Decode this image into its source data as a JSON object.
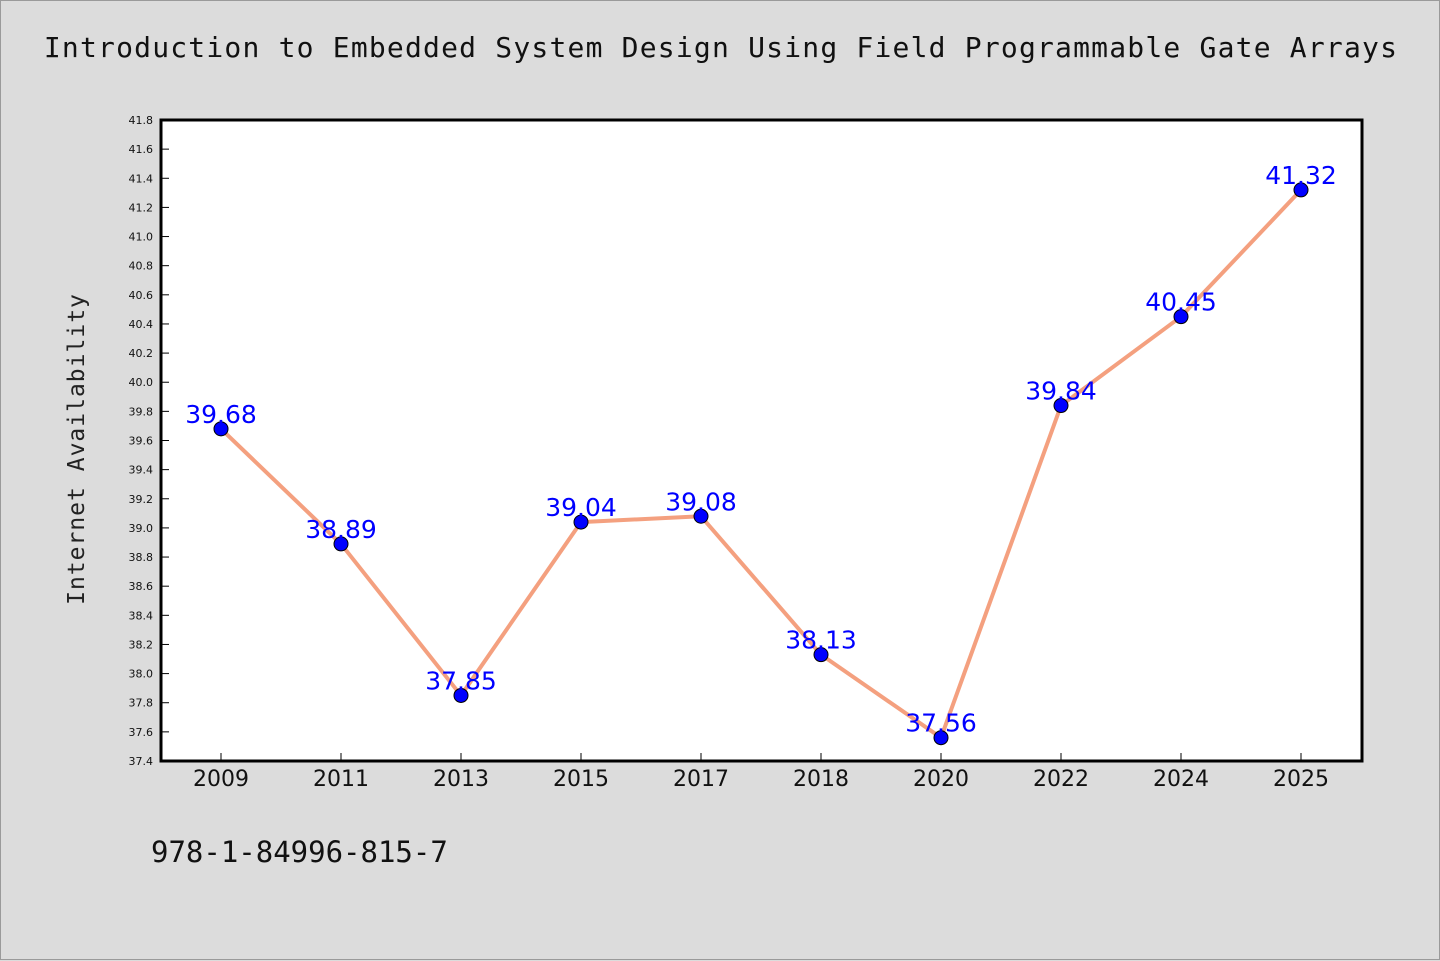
{
  "chart_data": {
    "type": "line",
    "title": "Introduction to Embedded System Design Using Field Programmable Gate Arrays",
    "ylabel": "Internet Availability",
    "xlabel": "",
    "categories": [
      "2009",
      "2011",
      "2013",
      "2015",
      "2017",
      "2018",
      "2020",
      "2022",
      "2024",
      "2025"
    ],
    "series": [
      {
        "values": [
          39.68,
          38.89,
          37.85,
          39.04,
          39.08,
          38.13,
          37.56,
          39.84,
          40.45,
          41.32
        ]
      }
    ],
    "data_labels": [
      "39.68",
      "38.89",
      "37.85",
      "39.04",
      "39.08",
      "38.13",
      "37.56",
      "39.84",
      "40.45",
      "41.32"
    ],
    "ylim": [
      37.4,
      41.8
    ],
    "yticks": [
      "37.4",
      "37.6",
      "37.8",
      "38.0",
      "38.2",
      "38.4",
      "38.6",
      "38.8",
      "39.0",
      "39.2",
      "39.4",
      "39.6",
      "39.8",
      "40.0",
      "40.2",
      "40.4",
      "40.6",
      "40.8",
      "41.0",
      "41.2",
      "41.4",
      "41.6",
      "41.8"
    ],
    "grid": false,
    "colors": {
      "line": "#f4a07f",
      "marker": "#0000ff",
      "label": "#0000ff",
      "background": "#dcdcdc",
      "plot_background": "#ffffff"
    }
  },
  "footer": {
    "code": "978-1-84996-815-7"
  }
}
